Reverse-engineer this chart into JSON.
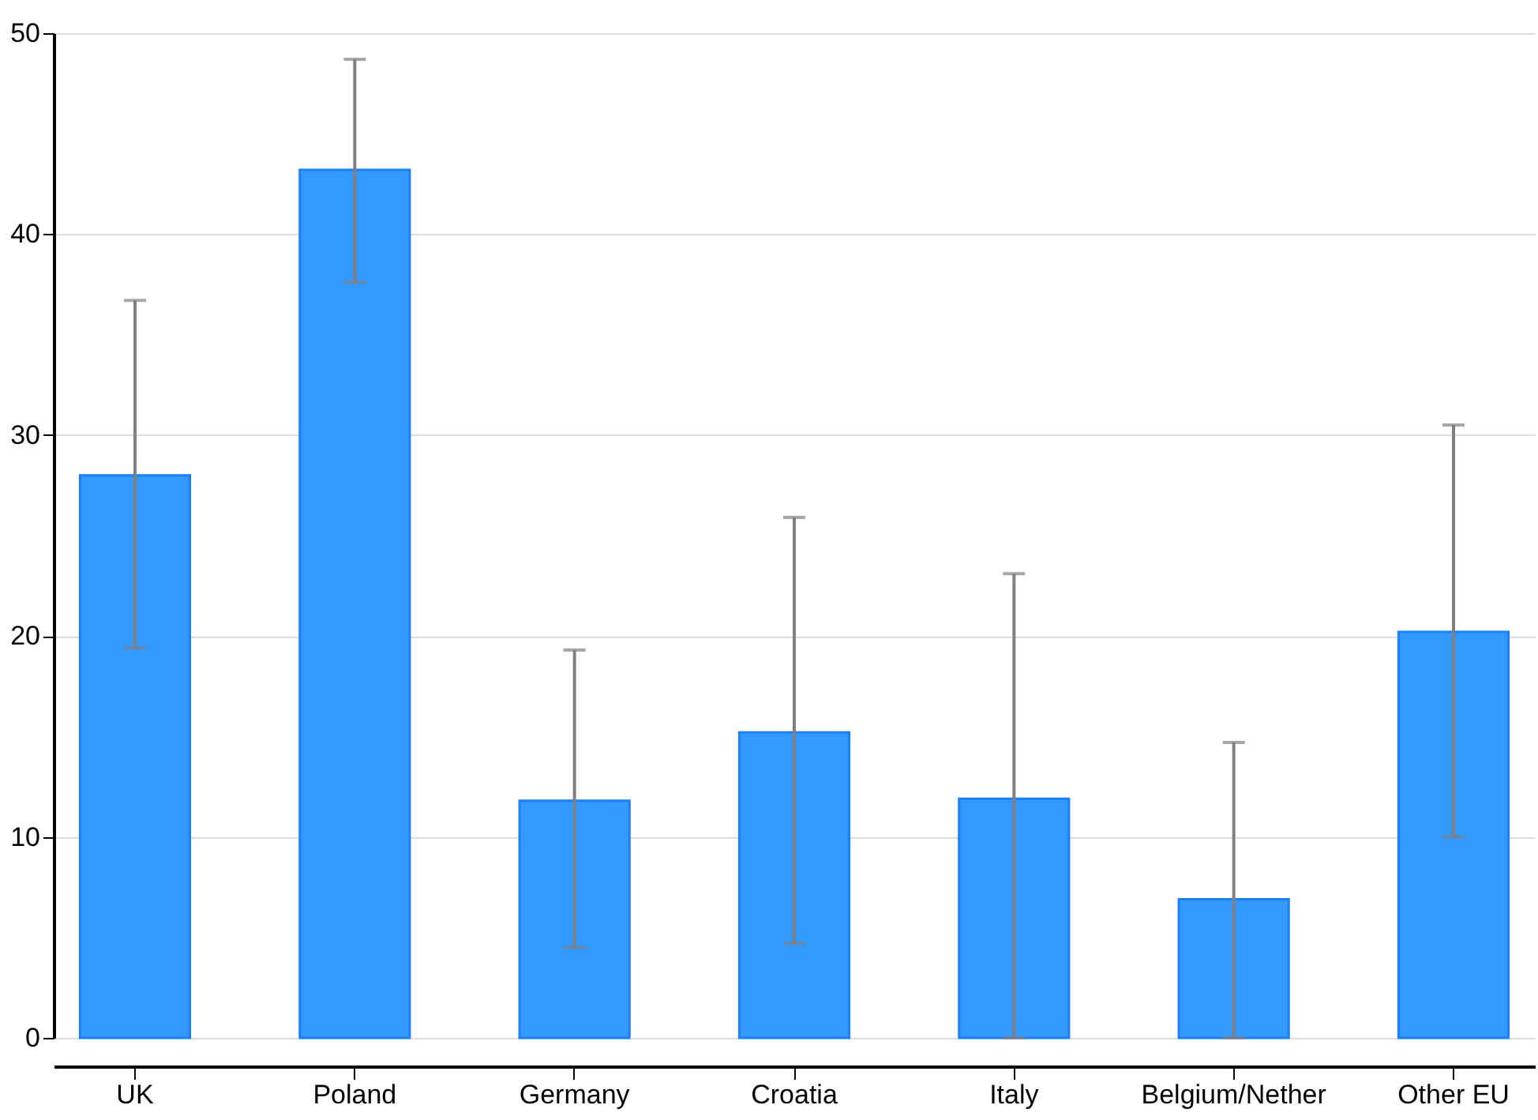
{
  "chart_data": {
    "type": "bar",
    "categories": [
      "UK",
      "Poland",
      "Germany",
      "Croatia",
      "Italy",
      "Belgium/Nether",
      "Other EU"
    ],
    "values": [
      28,
      43.2,
      11.8,
      15.2,
      11.9,
      6.9,
      20.2
    ],
    "errors": [
      [
        19.4,
        36.7
      ],
      [
        37.6,
        48.7
      ],
      [
        4.5,
        19.3
      ],
      [
        4.7,
        25.9
      ],
      [
        0,
        23.1
      ],
      [
        0,
        14.7
      ],
      [
        10,
        30.5
      ]
    ],
    "color": "#3399ff",
    "ylim": [
      0,
      50
    ],
    "yticks": [
      0,
      10,
      20,
      30,
      40,
      50
    ],
    "grid": "y"
  }
}
